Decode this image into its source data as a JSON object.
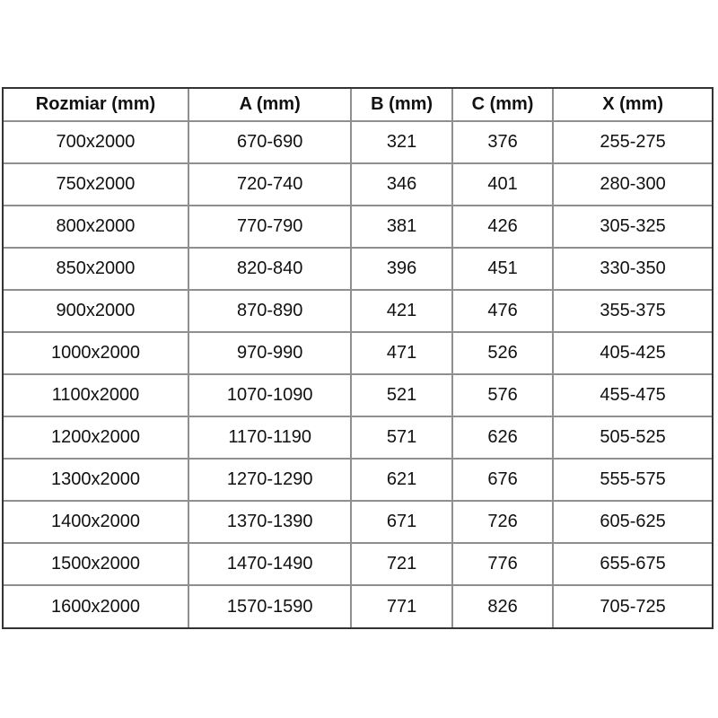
{
  "page": {
    "background": "#ffffff",
    "description": "Shower door sizing dimensions table"
  },
  "table": {
    "columns": [
      "Rozmiar (mm)",
      "A (mm)",
      "B (mm)",
      "C (mm)",
      "X (mm)"
    ],
    "rows": [
      [
        "700x2000",
        "670-690",
        "321",
        "376",
        "255-275"
      ],
      [
        "750x2000",
        "720-740",
        "346",
        "401",
        "280-300"
      ],
      [
        "800x2000",
        "770-790",
        "381",
        "426",
        "305-325"
      ],
      [
        "850x2000",
        "820-840",
        "396",
        "451",
        "330-350"
      ],
      [
        "900x2000",
        "870-890",
        "421",
        "476",
        "355-375"
      ],
      [
        "1000x2000",
        "970-990",
        "471",
        "526",
        "405-425"
      ],
      [
        "1100x2000",
        "1070-1090",
        "521",
        "576",
        "455-475"
      ],
      [
        "1200x2000",
        "1170-1190",
        "571",
        "626",
        "505-525"
      ],
      [
        "1300x2000",
        "1270-1290",
        "621",
        "676",
        "555-575"
      ],
      [
        "1400x2000",
        "1370-1390",
        "671",
        "726",
        "605-625"
      ],
      [
        "1500x2000",
        "1470-1490",
        "721",
        "776",
        "655-675"
      ],
      [
        "1600x2000",
        "1570-1590",
        "771",
        "826",
        "705-725"
      ]
    ],
    "colors": {
      "grid": "#8f8f8f",
      "outer_border": "#333333",
      "text": "#111111",
      "background": "#ffffff"
    }
  }
}
